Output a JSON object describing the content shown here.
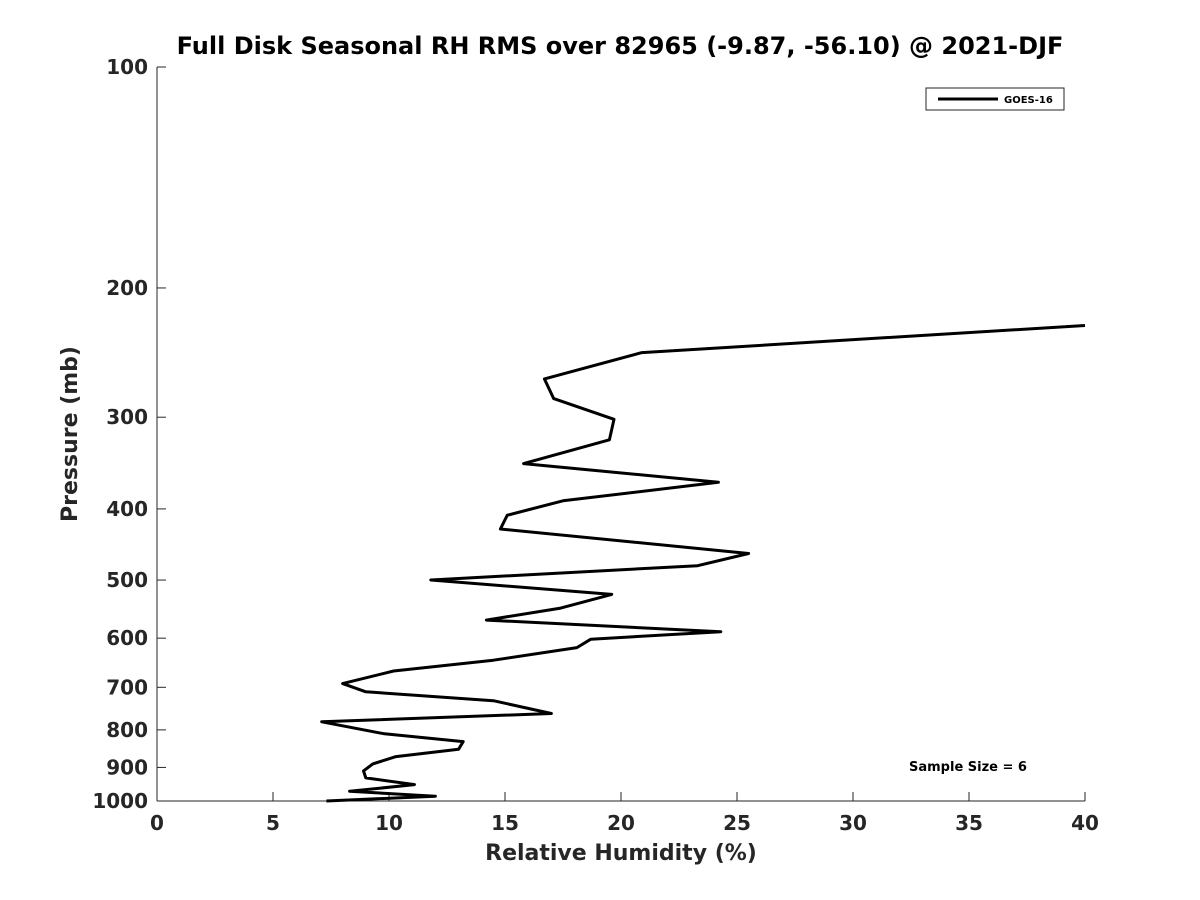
{
  "chart_data": {
    "type": "line",
    "title": "Full Disk Seasonal RH RMS over 82965 (-9.87, -56.10) @ 2021-DJF",
    "xlabel": "Relative Humidity (%)",
    "ylabel": "Pressure (mb)",
    "xlim": [
      0,
      40
    ],
    "ylim": [
      100,
      1000
    ],
    "y_scale": "log",
    "y_inverted": true,
    "x_ticks": [
      0,
      5,
      10,
      15,
      20,
      25,
      30,
      35,
      40
    ],
    "x_tick_labels": [
      "0",
      "5",
      "10",
      "15",
      "20",
      "25",
      "30",
      "35",
      "40"
    ],
    "y_ticks": [
      100,
      200,
      300,
      400,
      500,
      600,
      700,
      800,
      900,
      1000
    ],
    "y_tick_labels": [
      "100",
      "200",
      "300",
      "400",
      "500",
      "600",
      "700",
      "800",
      "900",
      "1000"
    ],
    "legend_position": "top-right",
    "annotation": "Sample Size = 6",
    "series": [
      {
        "name": "GOES-16",
        "color": "#000000",
        "x": [
          40.0,
          20.9,
          16.7,
          17.1,
          19.7,
          19.5,
          15.8,
          24.2,
          17.5,
          15.1,
          14.8,
          25.5,
          23.3,
          11.8,
          19.6,
          17.4,
          14.2,
          24.3,
          18.7,
          18.1,
          14.5,
          10.2,
          8.0,
          9.0,
          14.5,
          17.0,
          7.1,
          9.8,
          13.2,
          13.0,
          10.3,
          9.3,
          8.9,
          9.0,
          11.1,
          8.3,
          12.0,
          7.3
        ],
        "y": [
          225,
          245,
          266,
          283,
          302,
          322,
          347,
          368,
          390,
          408,
          426,
          460,
          478,
          500,
          523,
          546,
          567,
          588,
          602,
          618,
          643,
          665,
          692,
          710,
          730,
          760,
          780,
          810,
          830,
          850,
          870,
          890,
          910,
          930,
          950,
          970,
          985,
          1000
        ]
      }
    ]
  }
}
